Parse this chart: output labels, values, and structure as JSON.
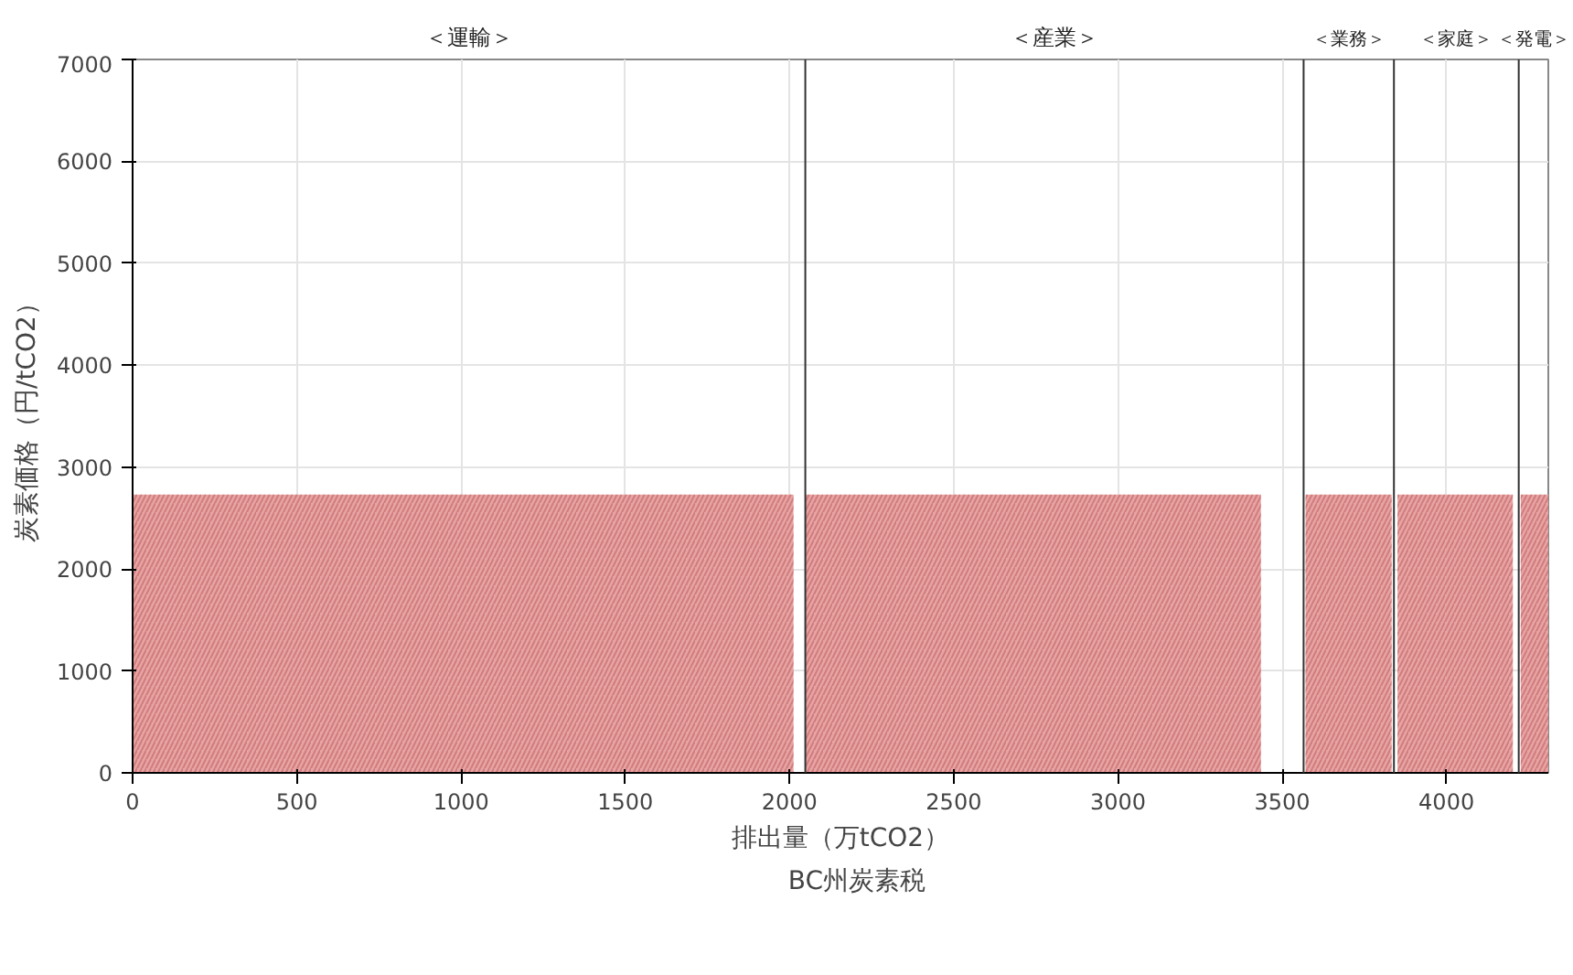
{
  "chart_data": {
    "type": "area",
    "xlabel": "排出量（万tCO2）",
    "ylabel": "炭素価格（円/tCO2）",
    "x": [
      0,
      2012,
      2030,
      2048,
      3435,
      3500,
      3571,
      3833,
      3842,
      3851,
      4202,
      4214,
      4226,
      4310
    ],
    "series": [
      {
        "name": "BC州炭素税",
        "color": "#e8a4a4",
        "values": [
          2730,
          2730,
          null,
          2730,
          2730,
          null,
          2730,
          2730,
          null,
          2730,
          2730,
          null,
          2730,
          2730
        ]
      }
    ],
    "ref_lines": [
      {
        "axis": "x",
        "value": 2048
      },
      {
        "axis": "x",
        "value": 3565
      },
      {
        "axis": "x",
        "value": 3840
      },
      {
        "axis": "x",
        "value": 4220
      }
    ],
    "annotations": [
      "＜運輸＞",
      "＜産業＞",
      "＜業務＞",
      "＜家庭＞",
      "＜発電＞"
    ],
    "xlim": [
      0,
      4310
    ],
    "ylim": [
      0,
      7000
    ],
    "xticks": [
      0,
      500,
      1000,
      1500,
      2000,
      2500,
      3000,
      3500,
      4000
    ],
    "yticks": [
      0,
      1000,
      2000,
      3000,
      4000,
      5000,
      6000,
      7000
    ],
    "grid": true,
    "legend": "bottom"
  }
}
